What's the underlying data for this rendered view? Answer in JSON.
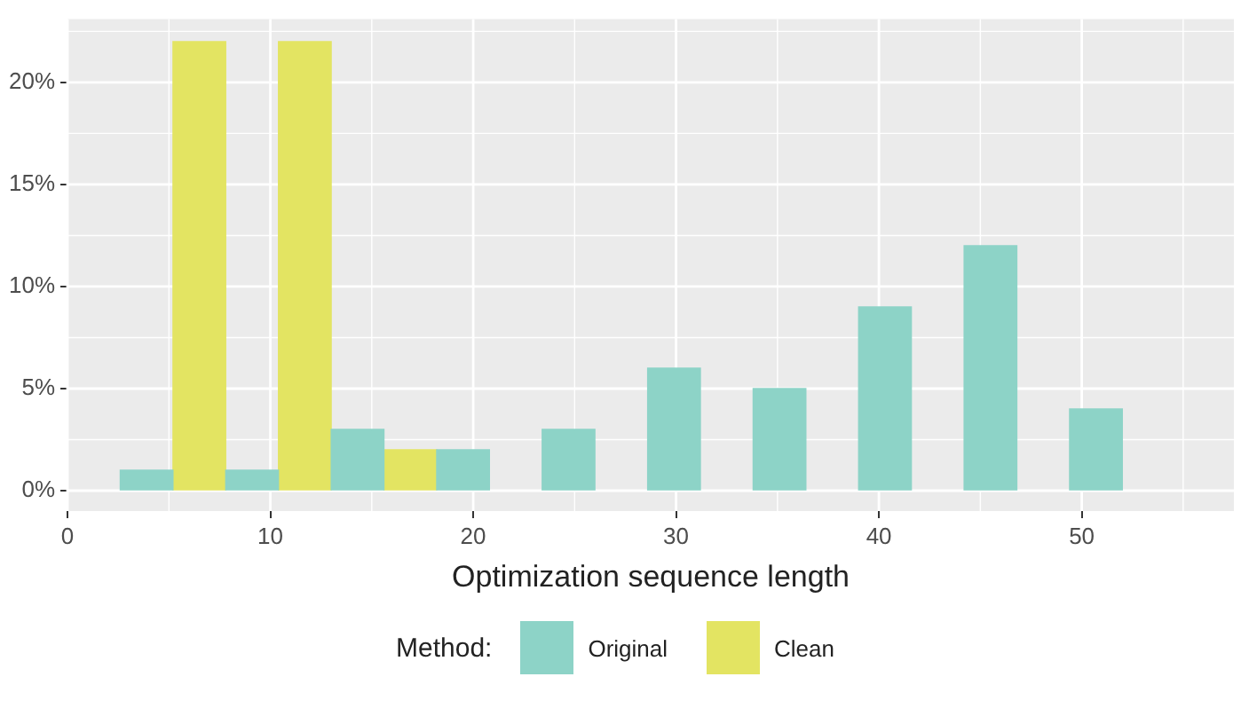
{
  "chart_data": {
    "type": "bar",
    "xlabel": "Optimization sequence length",
    "legend_title": "Method:",
    "legend": "bottom",
    "grid": true,
    "x": [
      5.2,
      10.4,
      15.6,
      20.8,
      26,
      31.2,
      36.4,
      41.6,
      46.8,
      52
    ],
    "series": [
      {
        "name": "Original",
        "color": "#8dd3c7",
        "values": [
          1,
          1,
          3,
          2,
          3,
          6,
          5,
          9,
          12,
          4
        ]
      },
      {
        "name": "Clean",
        "color": "#e3e462",
        "values": [
          22,
          22,
          2,
          null,
          null,
          null,
          null,
          null,
          null,
          null
        ]
      }
    ],
    "xlim": [
      0,
      57.5
    ],
    "xticks": [
      0,
      10,
      20,
      30,
      40,
      50
    ],
    "ylim": [
      -1,
      23.1
    ],
    "yticks": [
      {
        "value": 0,
        "label": "0%"
      },
      {
        "value": 5,
        "label": "5%"
      },
      {
        "value": 10,
        "label": "10%"
      },
      {
        "value": 15,
        "label": "15%"
      },
      {
        "value": 20,
        "label": "20%"
      }
    ]
  }
}
